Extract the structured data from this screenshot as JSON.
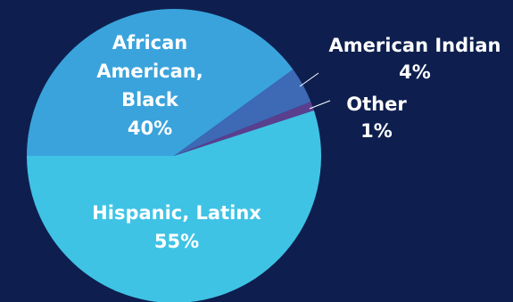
{
  "chart_data": {
    "type": "pie",
    "title": "",
    "legend": "none",
    "slices": [
      {
        "label_lines": [
          "African",
          "American,",
          "Black"
        ],
        "value": 40,
        "value_text": "40%",
        "color": "#3aa3dc"
      },
      {
        "label_lines": [
          "American Indian"
        ],
        "value": 4,
        "value_text": "4%",
        "color": "#3d69b5"
      },
      {
        "label_lines": [
          "Other"
        ],
        "value": 1,
        "value_text": "1%",
        "color": "#5b3f8f"
      },
      {
        "label_lines": [
          "Hispanic, Latinx"
        ],
        "value": 55,
        "value_text": "55%",
        "color": "#3fc3e5"
      }
    ]
  },
  "colors": {
    "background": "#0e1f4f",
    "label_text": "#ffffff"
  }
}
